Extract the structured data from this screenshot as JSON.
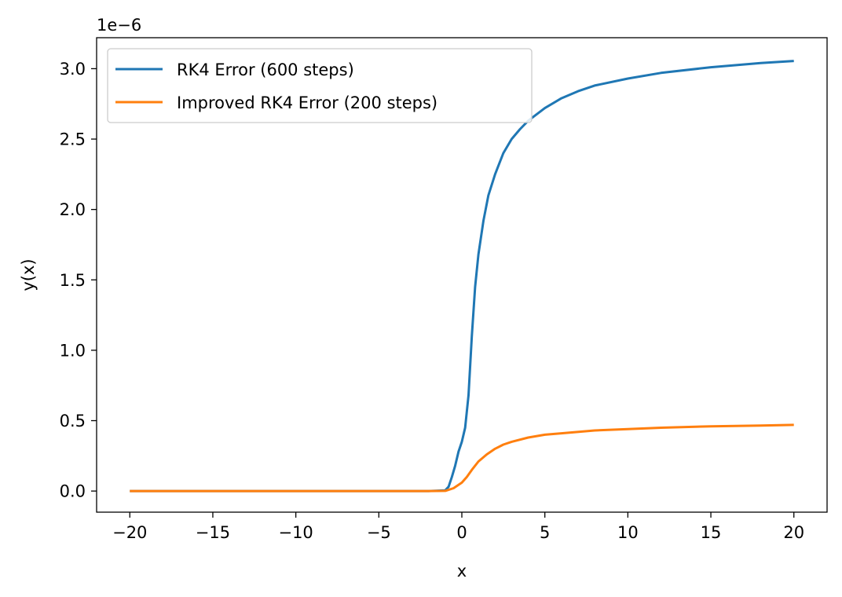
{
  "chart_data": {
    "type": "line",
    "title": "",
    "xlabel": "x",
    "ylabel": "y(x)",
    "offset_text": "1e−6",
    "xlim": [
      -22,
      22
    ],
    "ylim": [
      -0.15,
      3.22
    ],
    "xticks": [
      -20,
      -15,
      -10,
      -5,
      0,
      5,
      10,
      15,
      20
    ],
    "xtick_labels": [
      "−20",
      "−15",
      "−10",
      "−5",
      "0",
      "5",
      "10",
      "15",
      "20"
    ],
    "yticks": [
      0.0,
      0.5,
      1.0,
      1.5,
      2.0,
      2.5,
      3.0
    ],
    "ytick_labels": [
      "0.0",
      "0.5",
      "1.0",
      "1.5",
      "2.0",
      "2.5",
      "3.0"
    ],
    "grid": false,
    "legend_position": "top-left",
    "series": [
      {
        "name": "RK4 Error (600 steps)",
        "color": "#1f77b4",
        "x": [
          -20,
          -10,
          -5,
          -2,
          -1,
          -0.8,
          -0.6,
          -0.4,
          -0.2,
          0,
          0.2,
          0.4,
          0.6,
          0.8,
          1.0,
          1.3,
          1.6,
          2.0,
          2.5,
          3.0,
          3.5,
          4.0,
          5.0,
          6.0,
          7.0,
          8.0,
          10.0,
          12.0,
          15.0,
          18.0,
          20.0
        ],
        "y": [
          0.0,
          0.0,
          0.0,
          0.0,
          0.005,
          0.03,
          0.1,
          0.18,
          0.28,
          0.35,
          0.45,
          0.68,
          1.1,
          1.45,
          1.68,
          1.92,
          2.1,
          2.25,
          2.4,
          2.5,
          2.57,
          2.63,
          2.72,
          2.79,
          2.84,
          2.88,
          2.93,
          2.97,
          3.01,
          3.04,
          3.055
        ]
      },
      {
        "name": "Improved RK4 Error (200 steps)",
        "color": "#ff7f0e",
        "x": [
          -20,
          -10,
          -5,
          -2,
          -1,
          -0.5,
          0,
          0.3,
          0.6,
          1.0,
          1.5,
          2.0,
          2.5,
          3.0,
          4.0,
          5.0,
          6.0,
          8.0,
          10.0,
          12.0,
          15.0,
          18.0,
          20.0
        ],
        "y": [
          0.0,
          0.0,
          0.0,
          0.0,
          0.001,
          0.02,
          0.06,
          0.1,
          0.15,
          0.21,
          0.26,
          0.3,
          0.33,
          0.35,
          0.38,
          0.4,
          0.41,
          0.43,
          0.44,
          0.45,
          0.46,
          0.465,
          0.47
        ]
      }
    ]
  }
}
